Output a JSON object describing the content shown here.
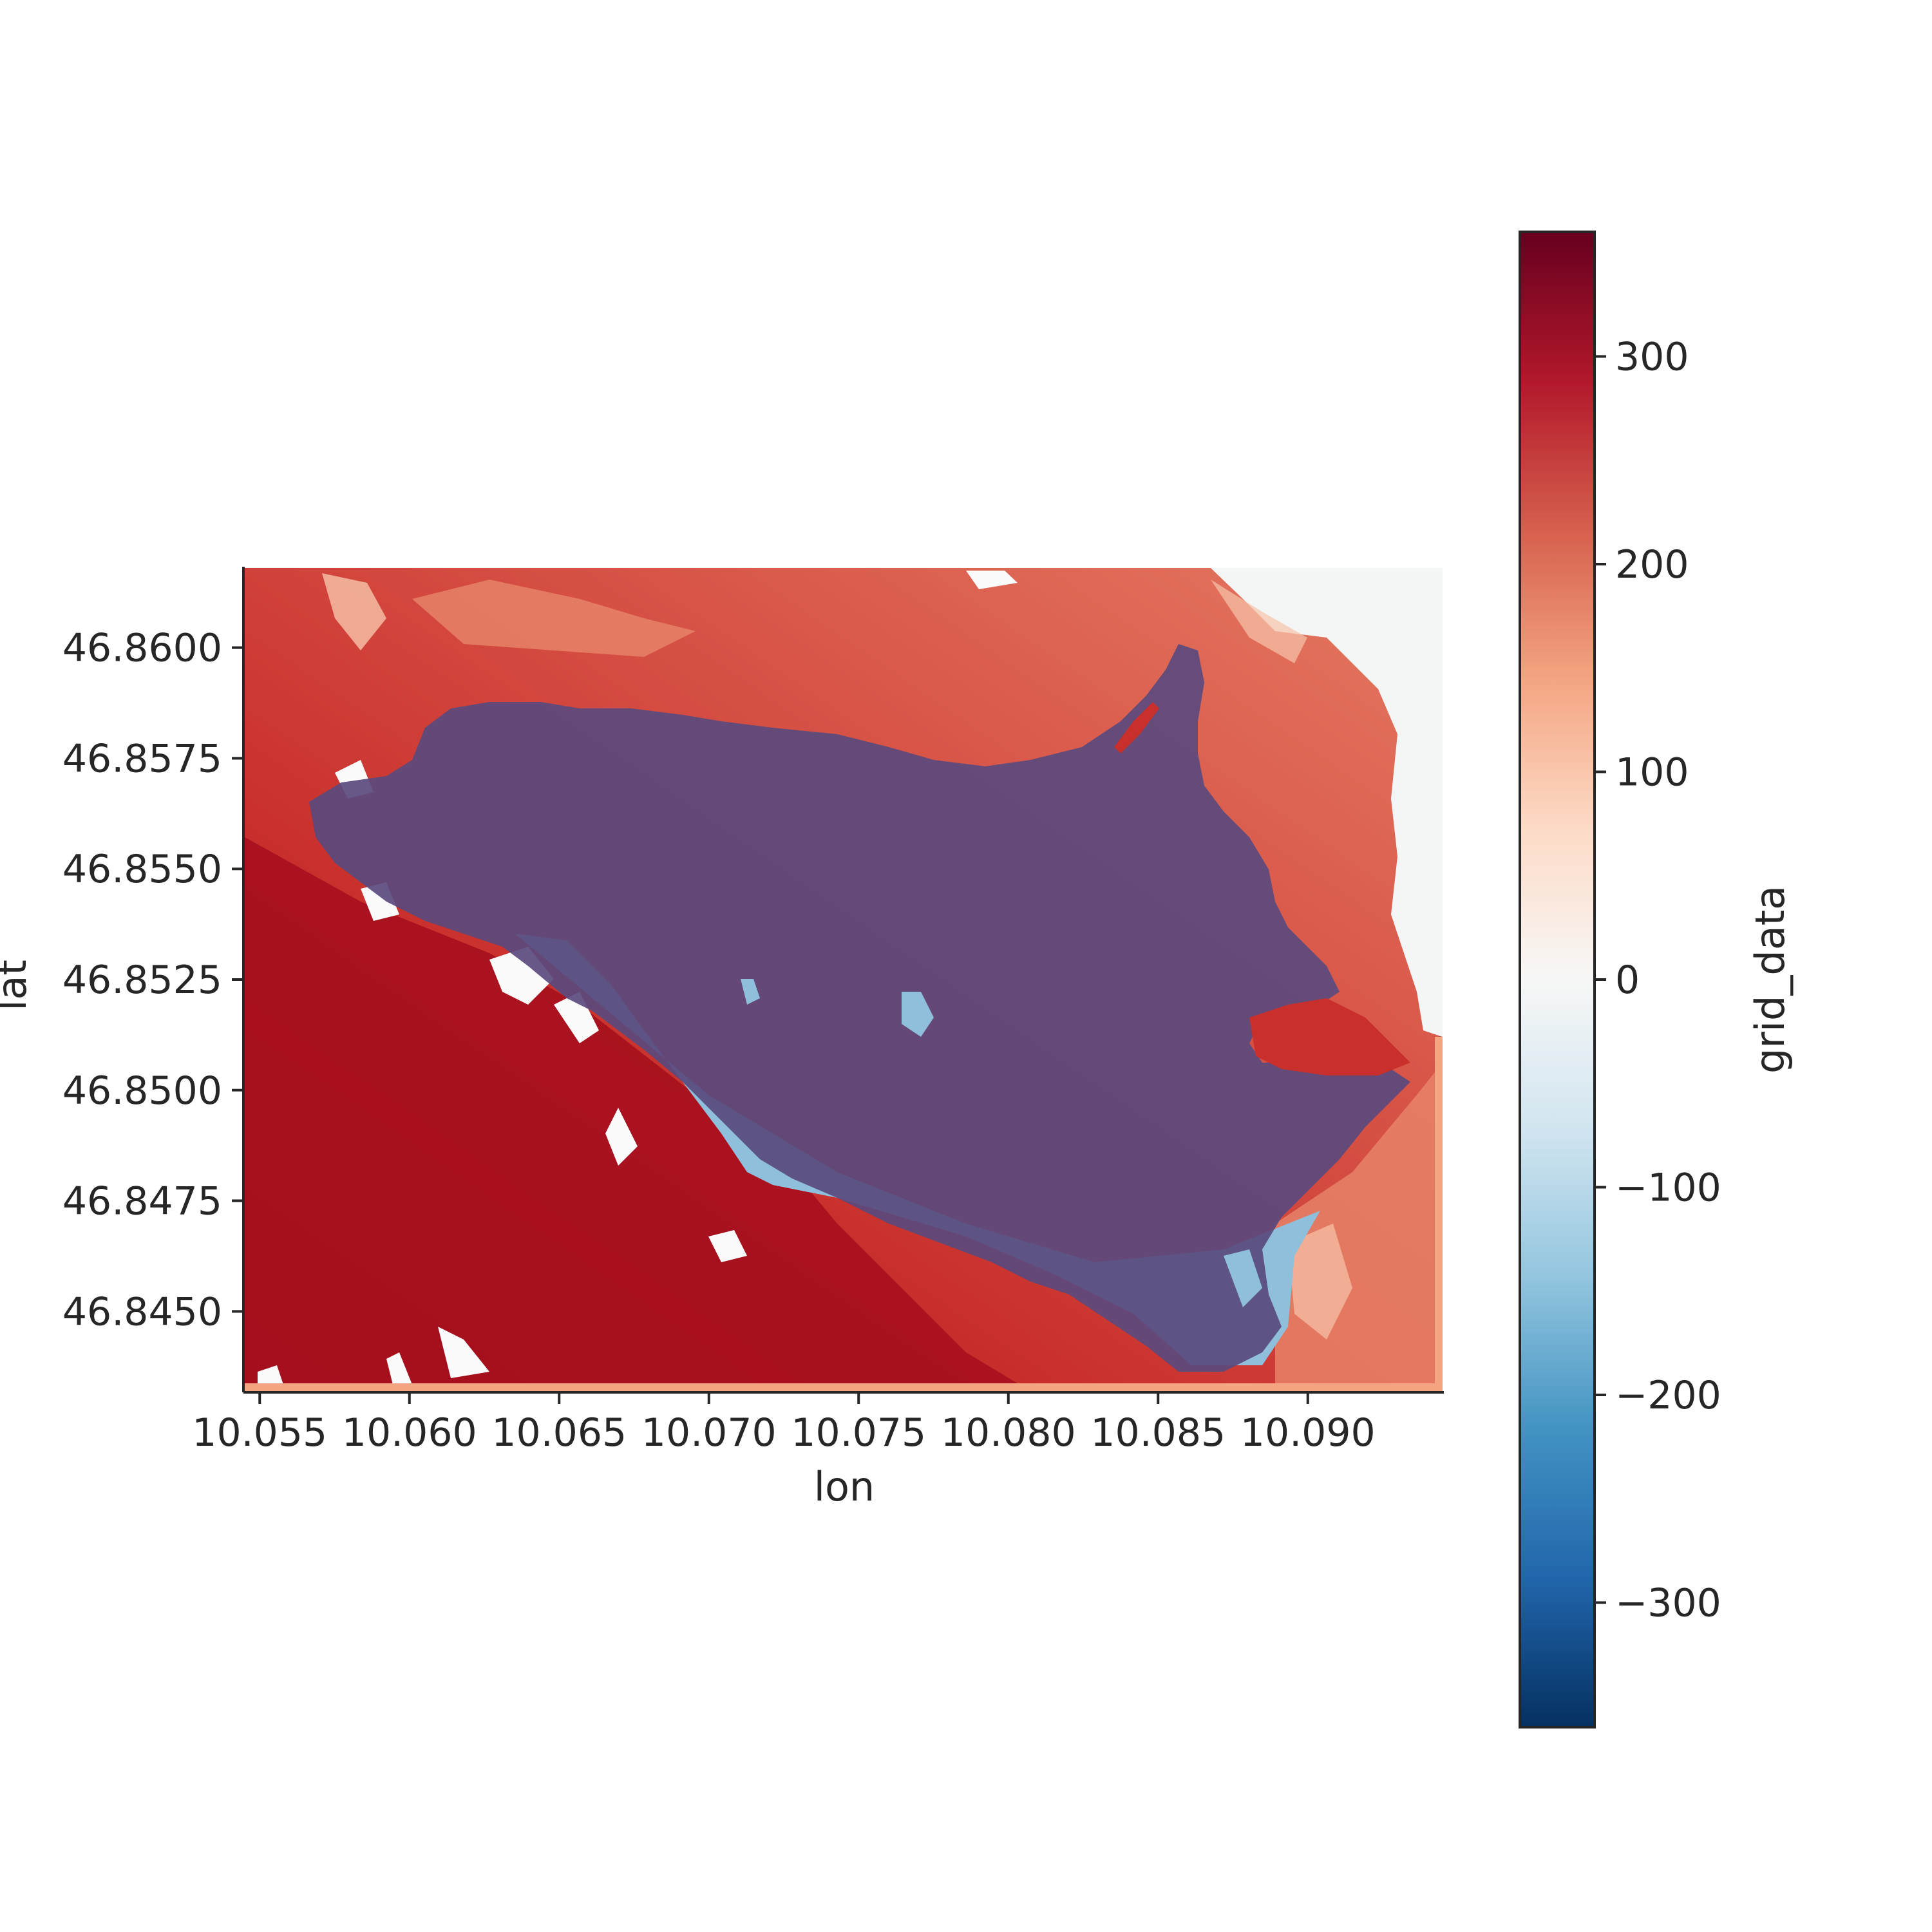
{
  "chart_data": {
    "type": "heatmap",
    "title": "",
    "xlabel": "lon",
    "ylabel": "lat",
    "xlim": [
      10.0545,
      10.0945
    ],
    "ylim": [
      46.8432,
      46.8618
    ],
    "x_ticks": [
      10.055,
      10.06,
      10.065,
      10.07,
      10.075,
      10.08,
      10.085,
      10.09
    ],
    "x_tick_labels": [
      "10.055",
      "10.060",
      "10.065",
      "10.070",
      "10.075",
      "10.080",
      "10.085",
      "10.090"
    ],
    "y_ticks": [
      46.845,
      46.8475,
      46.85,
      46.8525,
      46.855,
      46.8575,
      46.86
    ],
    "y_tick_labels": [
      "46.8450",
      "46.8475",
      "46.8500",
      "46.8525",
      "46.8550",
      "46.8575",
      "46.8600"
    ],
    "colorbar": {
      "label": "grid_data",
      "colormap": "RdBu_r",
      "vmin": -360,
      "vmax": 360,
      "ticks": [
        -300,
        -200,
        -100,
        0,
        100,
        200,
        300
      ],
      "tick_labels": [
        "−300",
        "−200",
        "−100",
        "0",
        "100",
        "200",
        "300"
      ]
    },
    "overlay": {
      "description": "glacier outline filled with semi-transparent purple",
      "color": "#5a4a7e"
    },
    "palette": {
      "dark_red": "#a50f1d",
      "red": "#cf4a3b",
      "salmon": "#e9866a",
      "peach": "#f7c4ab",
      "near_zero": "#f4f6f5",
      "light_blue": "#8fbfdb"
    }
  }
}
